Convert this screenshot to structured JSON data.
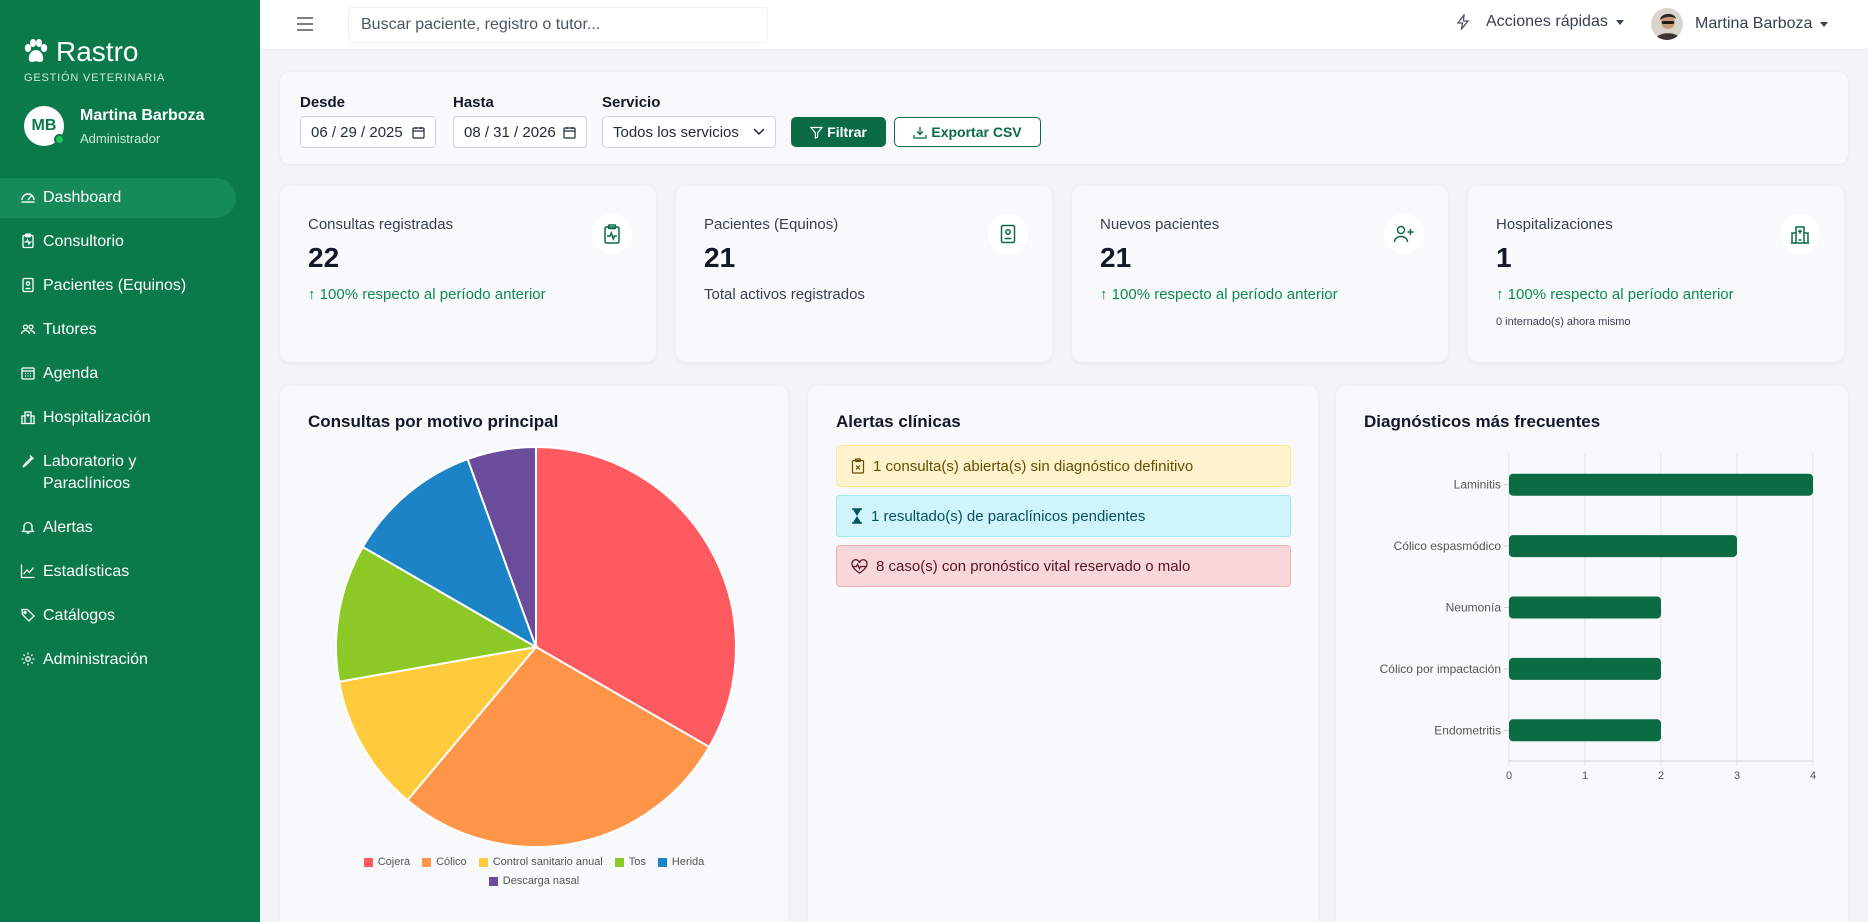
{
  "brand": {
    "name": "Rastro",
    "subtitle": "GESTIÓN VETERINARIA"
  },
  "user": {
    "initials": "MB",
    "name": "Martina Barboza",
    "role": "Administrador"
  },
  "sidebar": {
    "items": [
      {
        "label": "Dashboard",
        "icon": "dashboard-icon",
        "active": true
      },
      {
        "label": "Consultorio",
        "icon": "clipboard-pulse-icon"
      },
      {
        "label": "Pacientes (Equinos)",
        "icon": "id-badge-icon"
      },
      {
        "label": "Tutores",
        "icon": "people-icon"
      },
      {
        "label": "Agenda",
        "icon": "calendar-icon"
      },
      {
        "label": "Hospitalización",
        "icon": "hospital-icon"
      },
      {
        "label": "Laboratorio y Paraclínicos",
        "icon": "eyedropper-icon"
      },
      {
        "label": "Alertas",
        "icon": "bell-icon"
      },
      {
        "label": "Estadísticas",
        "icon": "graph-up-icon"
      },
      {
        "label": "Catálogos",
        "icon": "tags-icon"
      },
      {
        "label": "Administración",
        "icon": "gear-icon"
      }
    ]
  },
  "topbar": {
    "search_placeholder": "Buscar paciente, registro o tutor...",
    "quick_actions": "Acciones rápidas",
    "profile_name": "Martina Barboza"
  },
  "filters": {
    "from_label": "Desde",
    "from_value": "06 / 29 / 2025",
    "to_label": "Hasta",
    "to_value": "08 / 31 / 2026",
    "service_label": "Servicio",
    "service_value": "Todos los servicios",
    "filter_button": "Filtrar",
    "export_button": "Exportar CSV"
  },
  "kpis": [
    {
      "title": "Consultas registradas",
      "value": "22",
      "trend": "100% respecto al período anterior",
      "icon": "clipboard-pulse-icon"
    },
    {
      "title": "Pacientes (Equinos)",
      "value": "21",
      "sub": "Total activos registrados",
      "icon": "id-badge-icon"
    },
    {
      "title": "Nuevos pacientes",
      "value": "21",
      "trend": "100% respecto al período anterior",
      "icon": "person-add-icon"
    },
    {
      "title": "Hospitalizaciones",
      "value": "1",
      "trend": "100% respecto al período anterior",
      "note": "0 internado(s) ahora mismo",
      "icon": "hospital-icon"
    }
  ],
  "pie_card": {
    "title": "Consultas por motivo principal"
  },
  "alerts_card": {
    "title": "Alertas clínicas",
    "alerts": [
      {
        "text": "1 consulta(s) abierta(s) sin diagnóstico definitivo",
        "level": "warning",
        "icon": "clipboard-x-icon"
      },
      {
        "text": "1 resultado(s) de paraclínicos pendientes",
        "level": "info",
        "icon": "hourglass-icon"
      },
      {
        "text": "8 caso(s) con pronóstico vital reservado o malo",
        "level": "danger",
        "icon": "heart-pulse-icon"
      }
    ]
  },
  "diag_card": {
    "title": "Diagnósticos más frecuentes"
  },
  "colors": {
    "sidebar": "#0b7a4b",
    "primary": "#0b6b45",
    "bar": "#0b6b45"
  },
  "chart_data": [
    {
      "type": "pie",
      "title": "Consultas por motivo principal",
      "categories": [
        "Cojera",
        "Cólico",
        "Control sanitario anual",
        "Tos",
        "Herida",
        "Descarga nasal"
      ],
      "values": [
        6,
        5,
        2,
        2,
        2,
        1
      ],
      "colors": [
        "#ff5a5f",
        "#ff9549",
        "#ffcb3d",
        "#8cc926",
        "#1c84c6",
        "#6b4c9a"
      ],
      "legend": "bottom"
    },
    {
      "type": "bar",
      "orientation": "horizontal",
      "title": "Diagnósticos más frecuentes",
      "categories": [
        "Laminitis",
        "Cólico espasmódico",
        "Neumonía",
        "Cólico por impactación",
        "Endometritis"
      ],
      "values": [
        4,
        3,
        2,
        2,
        2
      ],
      "xlim": [
        0,
        4
      ],
      "xticks": [
        "0",
        "1",
        "2",
        "3",
        "4"
      ],
      "grid": true
    }
  ]
}
